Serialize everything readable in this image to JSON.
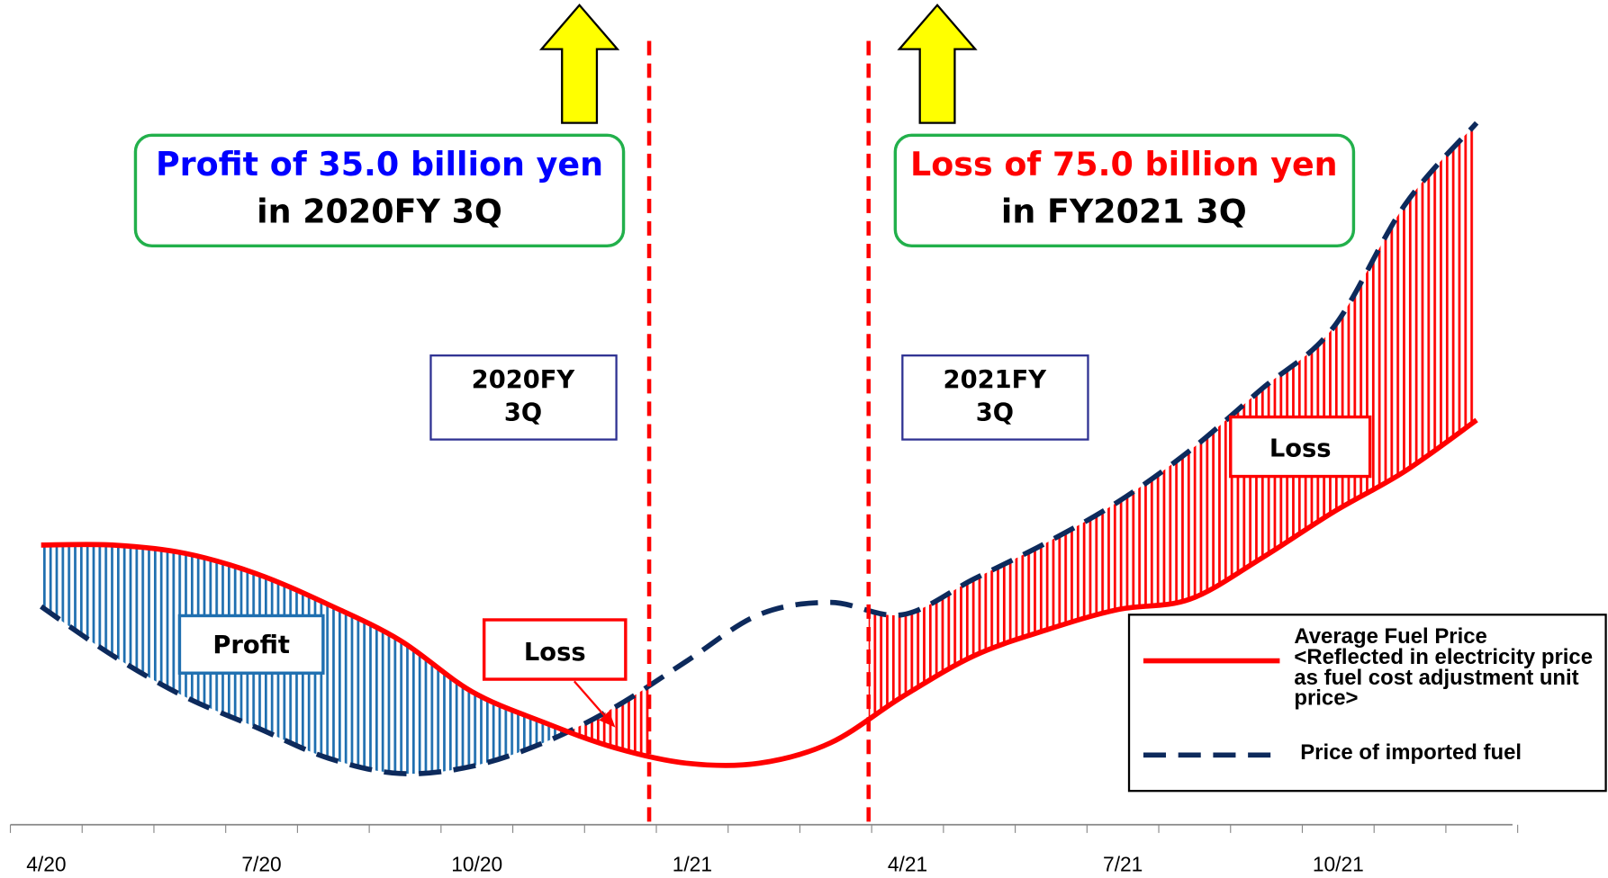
{
  "chart_data": {
    "type": "line",
    "categories": [
      "4/20",
      null,
      null,
      "7/20",
      null,
      null,
      "10/20",
      null,
      null,
      "1/21",
      null,
      null,
      "4/21",
      null,
      null,
      "7/21",
      null,
      null,
      "10/21",
      null,
      null
    ],
    "series": [
      {
        "name": "Average Fuel Price <Reflected in electricity price as fuel cost adjustment unit price>",
        "color": "#ff0000",
        "values": [
          268,
          268,
          260,
          240,
          210,
          175,
          125,
          95,
          70,
          55,
          55,
          75,
          120,
          160,
          185,
          205,
          215,
          255,
          300,
          340,
          390
        ]
      },
      {
        "name": "Price of imported fuel",
        "color": "#0d2a5c",
        "values": [
          208,
          160,
          120,
          90,
          60,
          45,
          52,
          75,
          110,
          155,
          200,
          212,
          200,
          235,
          270,
          310,
          360,
          420,
          480,
          600,
          680
        ]
      }
    ],
    "ylim": [
      0,
      700
    ],
    "profit_color": "#1f6fb0",
    "loss_color": "#ff0000",
    "annotations": {
      "left_box": {
        "line1": "Profit of 35.0 billion yen",
        "line2": "in 2020FY 3Q"
      },
      "right_box": {
        "line1": "Loss of 75.0 billion yen",
        "line2": "in FY2021 3Q"
      },
      "left_quarter": {
        "line1": "2020FY",
        "line2": "3Q"
      },
      "right_quarter": {
        "line1": "2021FY",
        "line2": "3Q"
      },
      "profit_label": "Profit",
      "loss_label_small": "Loss",
      "loss_label_large": "Loss"
    }
  }
}
